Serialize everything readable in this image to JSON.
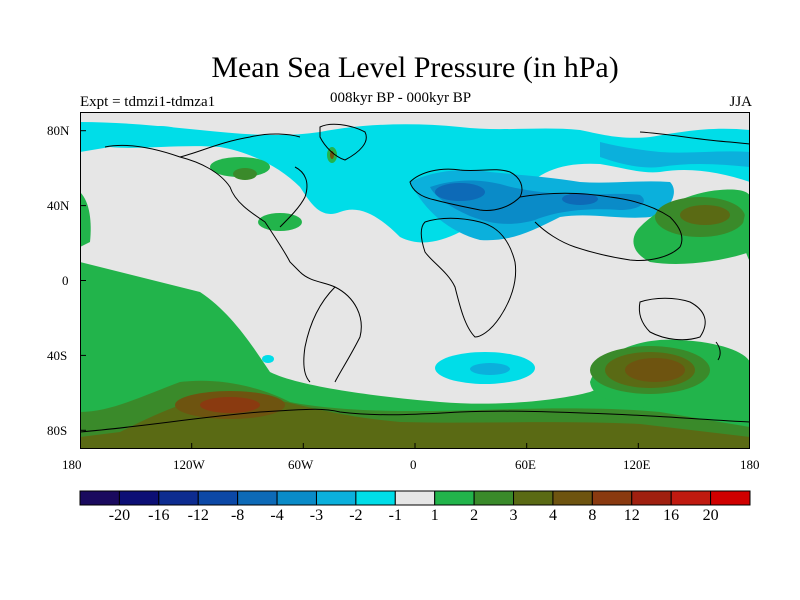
{
  "header": {
    "title": "Mean Sea Level Pressure (in hPa)",
    "subtitle": "008kyr BP - 000kyr BP",
    "left_label": "Expt = tdmzi1-tdmza1",
    "right_label": "JJA"
  },
  "axes": {
    "x_ticks": [
      "180",
      "120W",
      "60W",
      "0",
      "60E",
      "120E",
      "180"
    ],
    "x_values": [
      -180,
      -120,
      -60,
      0,
      60,
      120,
      180
    ],
    "y_ticks": [
      "80N",
      "40N",
      "0",
      "40S",
      "80S"
    ],
    "y_values": [
      80,
      40,
      0,
      -40,
      -80
    ],
    "lat_range": [
      -90,
      90
    ],
    "lon_range": [
      -180,
      180
    ]
  },
  "colorbar": {
    "labels": [
      "-20",
      "-16",
      "-12",
      "-8",
      "-4",
      "-3",
      "-2",
      "-1",
      "1",
      "2",
      "3",
      "4",
      "8",
      "12",
      "16",
      "20"
    ],
    "colors": [
      "#1a0a5e",
      "#0c0f75",
      "#0d2c90",
      "#0c48a6",
      "#0d6ab7",
      "#0a8bc8",
      "#0bb0dc",
      "#00dde8",
      "#e6e6e6",
      "#22b44b",
      "#3a8a2a",
      "#5a6a14",
      "#6e5410",
      "#8a3a10",
      "#a02010",
      "#c01a10",
      "#d00000"
    ]
  },
  "legend_levels": {
    "grey": "#e6e6e6",
    "cyan": "#00dde8",
    "lightblue": "#0bb0dc",
    "blue": "#0a8bc8",
    "darkblue": "#0d6ab7",
    "green": "#22b44b",
    "darkgreen": "#3a8a2a",
    "olive": "#5a6a14",
    "brown": "#6e5410",
    "redbrown": "#8a3a10"
  }
}
